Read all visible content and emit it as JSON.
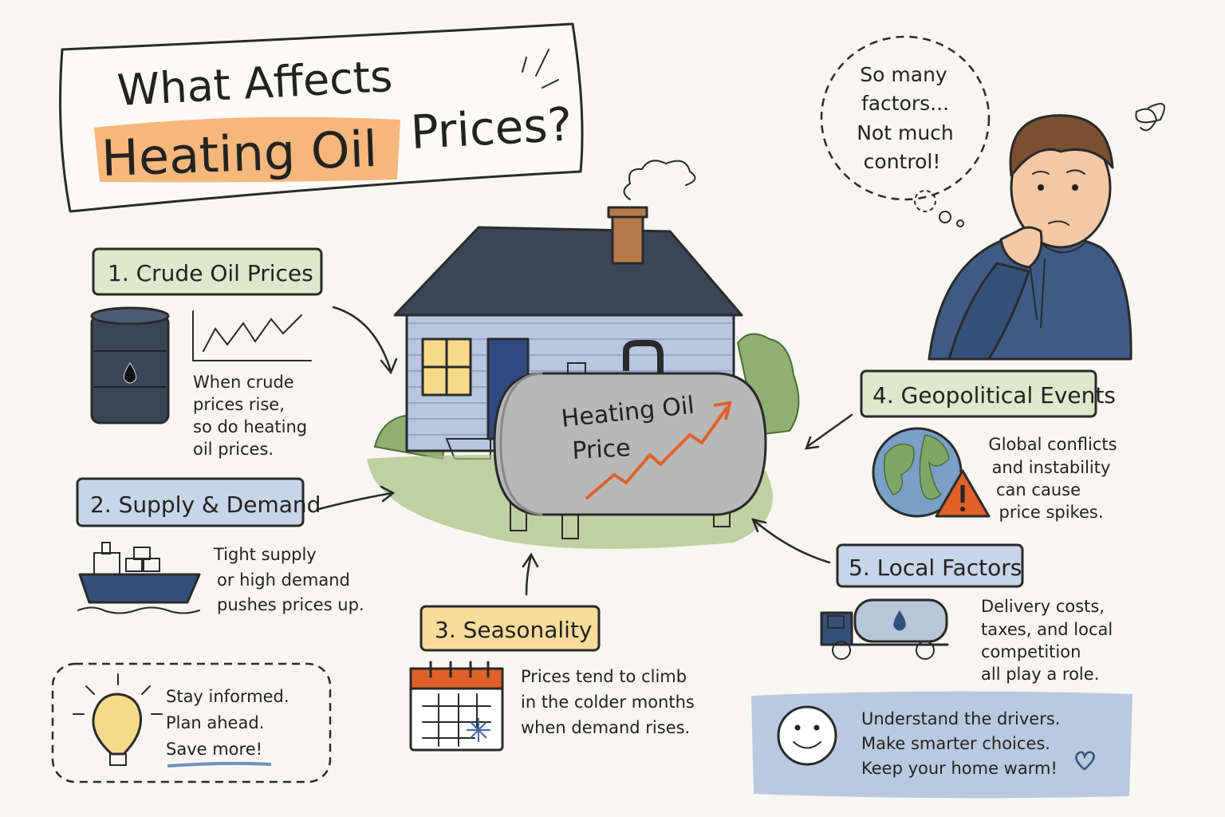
{
  "title": {
    "line1": "What Affects",
    "highlight": "Heating Oil",
    "line2": "Prices?"
  },
  "thought": [
    "So many",
    "factors...",
    "Not much",
    "control!"
  ],
  "tank": [
    "Heating Oil",
    "Price"
  ],
  "factors": [
    {
      "title": "1. Crude Oil Prices",
      "lines": [
        "When crude",
        "prices rise,",
        "so do heating",
        "oil prices."
      ]
    },
    {
      "title": "2. Supply & Demand",
      "lines": [
        "Tight supply",
        "or high demand",
        "pushes prices up."
      ]
    },
    {
      "title": "3. Seasonality",
      "lines": [
        "Prices tend to climb",
        "in the colder months",
        "when demand rises."
      ]
    },
    {
      "title": "4. Geopolitical Events",
      "lines": [
        "Global conflicts",
        "and instability",
        "can cause",
        "price spikes."
      ]
    },
    {
      "title": "5. Local Factors",
      "lines": [
        "Delivery costs,",
        "taxes, and local",
        "competition",
        "all play a role."
      ]
    }
  ],
  "tip": [
    "Stay informed.",
    "Plan ahead.",
    "Save more!"
  ],
  "banner": [
    "Understand the drivers.",
    "Make smarter choices.",
    "Keep your home warm!"
  ]
}
